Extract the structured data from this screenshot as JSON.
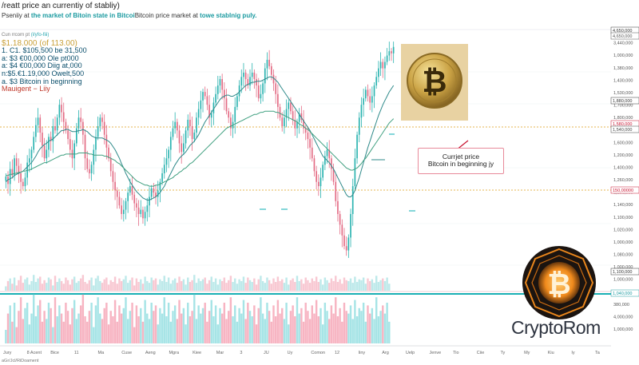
{
  "header": {
    "title": "/reatt price an currentiy of stabliy)",
    "subtitle_prefix": "Pseniiy at",
    "subtitle_hl1": "the market of Bitoin state in Bitcoi",
    "subtitle_mid": "Bitcoin price market at",
    "subtitle_hl2": "towe stablnig puly."
  },
  "stats": {
    "caption": "Cun rrcorn pt",
    "caption_tag": "(l/yfo-fiii)",
    "price": "$1.18.000 (of 113.00)",
    "rows": [
      "1. C1. $105,500 be 31,500",
      "a: $3 €00,000 Ole pt000",
      "a: $4 €00,000 Diig at,000",
      "n:$5.€1.19,000 Owelt,500",
      "a. $3 Bitcoin in beginning"
    ],
    "legend": "Mauigent − Liiy"
  },
  "annotation": {
    "line1": "Currjet price",
    "line2": "Bitcoin in beginning jy"
  },
  "brand": "CryptoRom",
  "bottom_left_note": "aGr/Jcl/RiDoament",
  "chart_data": {
    "type": "candlestick",
    "x_labels": [
      "Jury",
      "8 Acent",
      "Bice",
      "11",
      "Ma",
      "Cuse",
      "Aeng",
      "Mgra",
      "Kiee",
      "Mar",
      "3",
      "JU",
      "Uy",
      "Comon",
      "12",
      "Iiny",
      "Arg",
      "Uelp",
      "Jenve",
      "Tio",
      "Ciie",
      "Ty",
      "My",
      "Kiu",
      "Iy",
      "Ta"
    ],
    "y_labels": [
      "4,025,090",
      "3,440,000",
      "1,000,000",
      "1,380,000",
      "1,430,000",
      "1,530,000",
      "1,700,000",
      "1,800,000",
      "1,590,000",
      "1,600,000",
      "1,200,000",
      "1,400,000",
      "1,260,000",
      "1,200,000",
      "1,140,000",
      "1,100,000",
      "1,020,000",
      "1,000,000",
      "1,080,000",
      "1,000,000",
      "1,000,000",
      "1,000,000",
      "380,000",
      "4,000,000",
      "1,000,000"
    ],
    "highlighted_labels": [
      "4,650,000",
      "4,650,000",
      "1,880,000",
      "1,580,000",
      "1,540,000",
      "150,00000",
      "1,100,000",
      "1,040,000"
    ],
    "closes": [
      245,
      238,
      252,
      246,
      262,
      255,
      248,
      240,
      236,
      244,
      258,
      262,
      270,
      282,
      293,
      300,
      286,
      274,
      262,
      270,
      282,
      278,
      292,
      288,
      300,
      312,
      305,
      296,
      288,
      280,
      270,
      262,
      276,
      290,
      300,
      296,
      284,
      262,
      252,
      248,
      256,
      270,
      282,
      292,
      300,
      296,
      284,
      272,
      262,
      250,
      240,
      232,
      226,
      218,
      210,
      214,
      222,
      230,
      236,
      228,
      220,
      216,
      210,
      214,
      206,
      212,
      218,
      226,
      234,
      230,
      226,
      232,
      240,
      248,
      256,
      262,
      270,
      282,
      290,
      296,
      288,
      276,
      268,
      276,
      288,
      298,
      292,
      280,
      286,
      300,
      308,
      316,
      324,
      320,
      312,
      300,
      304,
      314,
      322,
      330,
      336,
      326,
      318,
      306,
      300,
      290,
      296,
      310,
      320,
      330,
      338,
      342,
      336,
      330,
      338,
      342,
      336,
      330,
      318,
      322,
      332,
      346,
      354,
      348,
      340,
      332,
      322,
      310,
      300,
      292,
      300,
      308,
      314,
      306,
      298,
      290,
      296,
      304,
      298,
      290,
      286,
      280,
      272,
      262,
      250,
      240,
      236,
      244,
      256,
      264,
      270,
      262,
      252,
      240,
      222,
      210,
      200,
      190,
      180,
      176,
      188,
      210,
      236,
      262,
      284,
      300,
      312,
      318,
      326,
      320,
      314,
      320,
      330,
      338,
      346,
      352,
      346,
      352,
      358,
      362,
      360,
      366
    ],
    "ma_fast": [
      240,
      242,
      243,
      244,
      246,
      247,
      248,
      249,
      250,
      252,
      254,
      256,
      258,
      261,
      264,
      268,
      271,
      273,
      275,
      276,
      278,
      279,
      280,
      282,
      284,
      286,
      288,
      288,
      289,
      289,
      288,
      287,
      287,
      287,
      288,
      288,
      289,
      288,
      287,
      285,
      283,
      282,
      281,
      281,
      281,
      281,
      280,
      279,
      278,
      276,
      273,
      270,
      266,
      262,
      257,
      253,
      248,
      244,
      240,
      237,
      234,
      231,
      229,
      227,
      225,
      224,
      223,
      223,
      224,
      225,
      226,
      228,
      230,
      233,
      236,
      240,
      244,
      248,
      252,
      256,
      259,
      262,
      264,
      266,
      268,
      271,
      274,
      276,
      278,
      281,
      284,
      288,
      292,
      296,
      299,
      302,
      305,
      308,
      311,
      314,
      317,
      319,
      320,
      321,
      321,
      320,
      320,
      321,
      322,
      324,
      326,
      328,
      330,
      331,
      332,
      333,
      333,
      334,
      334,
      334,
      335,
      336,
      337,
      338,
      338,
      337,
      335,
      333,
      330,
      327,
      324,
      321,
      318,
      315,
      312,
      309,
      306,
      303,
      300,
      297,
      294,
      291,
      288,
      284,
      280,
      276,
      272,
      268,
      264,
      262,
      260,
      258,
      255,
      252,
      248,
      244,
      240,
      236,
      232,
      228,
      226,
      226,
      228,
      232,
      238,
      244,
      251,
      258,
      265,
      272,
      278,
      284,
      290,
      296,
      302,
      307,
      312,
      316,
      320,
      324,
      327,
      330
    ],
    "ma_slow": [
      246,
      246,
      247,
      247,
      248,
      248,
      249,
      249,
      250,
      250,
      251,
      251,
      252,
      253,
      254,
      255,
      256,
      257,
      258,
      258,
      259,
      260,
      261,
      262,
      263,
      264,
      265,
      265,
      266,
      266,
      266,
      266,
      266,
      266,
      267,
      267,
      267,
      267,
      267,
      266,
      266,
      265,
      265,
      265,
      265,
      265,
      264,
      264,
      263,
      262,
      261,
      260,
      258,
      257,
      255,
      253,
      251,
      249,
      247,
      245,
      243,
      241,
      240,
      239,
      238,
      237,
      237,
      236,
      236,
      236,
      237,
      237,
      238,
      239,
      240,
      241,
      242,
      243,
      244,
      246,
      247,
      249,
      250,
      252,
      253,
      255,
      257,
      258,
      260,
      262,
      264,
      266,
      268,
      270,
      272,
      274,
      276,
      278,
      280,
      282,
      284,
      286,
      288,
      290,
      291,
      292,
      293,
      294,
      295,
      296,
      297,
      298,
      299,
      300,
      301,
      302,
      303,
      303,
      304,
      305,
      305,
      306,
      306,
      306,
      306,
      306,
      305,
      305,
      304,
      303,
      302,
      301,
      300,
      299,
      298,
      297,
      296,
      294,
      293,
      292,
      290,
      289,
      287,
      285,
      283,
      281,
      279,
      277,
      275,
      273,
      271,
      269,
      267,
      265,
      263,
      261,
      259,
      257,
      255,
      253,
      252,
      251,
      251,
      252,
      253,
      255,
      257,
      260,
      262,
      265,
      268,
      271,
      274,
      277,
      280,
      283,
      286,
      289,
      292,
      295,
      297,
      299
    ],
    "ylim": [
      160,
      380
    ],
    "volumes": [
      10,
      22,
      28,
      16,
      30,
      12,
      24,
      34,
      18,
      26,
      30,
      14,
      22,
      36,
      20,
      28,
      32,
      16,
      24,
      18,
      30,
      26,
      12,
      34,
      20,
      28,
      22,
      16,
      30,
      24,
      14,
      26,
      32,
      18,
      22,
      28,
      36,
      20,
      16,
      24,
      30,
      12,
      28,
      34,
      22,
      18,
      26,
      30,
      14,
      24,
      20,
      32,
      16,
      28,
      22,
      26,
      34,
      18,
      24,
      30,
      12,
      28,
      20,
      26,
      16,
      32,
      22,
      18,
      30,
      24,
      28,
      14,
      26,
      22,
      34,
      20,
      30,
      16,
      24,
      28,
      18,
      32,
      22,
      26,
      14,
      30,
      20,
      24,
      36,
      18,
      28,
      22,
      26,
      30,
      16,
      24,
      32,
      20,
      28,
      14,
      26,
      22,
      30,
      18,
      24,
      34,
      20,
      28,
      16,
      26,
      22,
      32,
      18,
      30,
      24,
      20,
      28,
      14,
      26,
      34,
      22,
      18,
      30,
      24,
      16,
      28,
      20,
      32,
      22,
      26,
      18,
      30,
      14,
      24,
      28,
      20,
      34,
      22,
      26,
      16,
      30,
      24,
      18,
      28,
      22,
      32,
      20,
      26,
      14,
      30,
      24,
      18,
      28,
      22,
      34,
      20,
      26,
      16,
      30,
      24,
      22,
      28,
      18,
      32,
      20,
      26,
      24,
      30,
      16,
      28,
      22,
      26,
      18,
      34,
      20,
      24,
      28,
      22,
      30,
      16
    ]
  }
}
